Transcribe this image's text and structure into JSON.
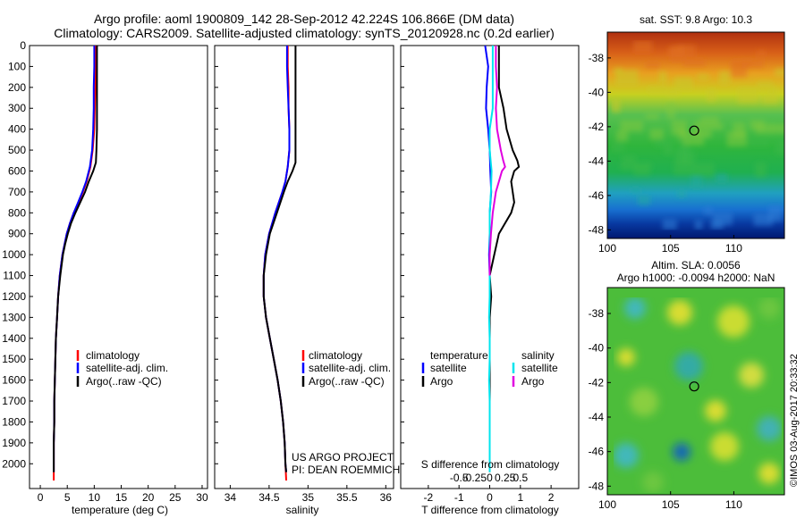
{
  "header": {
    "title_line1": "Argo profile: aoml 1900809_142 28-Sep-2012 42.224S 106.866E (DM data)",
    "title_line2": "Climatology: CARS2009. Satellite-adjusted climatology: synTS_20120928.nc (0.2d earlier)"
  },
  "footer_side": "©IMOS 03-Aug-2017 20:33:32",
  "colors": {
    "climatology": "#ff0000",
    "satellite_adj": "#0000ff",
    "argo": "#000000",
    "sat_temp_diff": "#0000ff",
    "sat_sal_diff": "#00e5ee",
    "argo_sal_diff": "#e000e0"
  },
  "chart_data": [
    {
      "type": "line",
      "xlabel": "temperature (deg C)",
      "ylabel": "",
      "xlim": [
        -2,
        31
      ],
      "ylim": [
        2080,
        0
      ],
      "x_ticks": [
        "0",
        "5",
        "10",
        "15",
        "20",
        "25",
        "30"
      ],
      "y_ticks": [
        "0",
        "100",
        "200",
        "300",
        "400",
        "500",
        "600",
        "700",
        "800",
        "900",
        "1000",
        "1100",
        "1200",
        "1300",
        "1400",
        "1500",
        "1600",
        "1700",
        "1800",
        "1900",
        "2000"
      ],
      "legend": [
        "climatology",
        "satellite-adj. clim.",
        "Argo(..raw -QC)"
      ],
      "legend_position": "lower-center",
      "series": [
        {
          "name": "climatology",
          "color": "#ff0000",
          "depth": [
            0,
            100,
            200,
            300,
            400,
            500,
            580,
            650,
            700,
            750,
            800,
            850,
            900,
            950,
            1000,
            1100,
            1200,
            1300,
            1400,
            1500,
            1600,
            1700,
            1800,
            1900,
            2000,
            2080
          ],
          "values": [
            10.2,
            10.2,
            10.2,
            10.1,
            10.0,
            9.7,
            9.3,
            8.6,
            7.9,
            7.1,
            6.2,
            5.5,
            4.9,
            4.5,
            4.1,
            3.6,
            3.3,
            3.1,
            2.9,
            2.8,
            2.7,
            2.6,
            2.6,
            2.5,
            2.5,
            2.5
          ]
        },
        {
          "name": "satellite-adj. clim.",
          "color": "#0000ff",
          "depth": [
            0,
            100,
            200,
            300,
            400,
            500,
            580,
            650,
            700,
            750,
            800,
            850,
            900,
            950,
            1000,
            1100,
            1200,
            1300,
            1400,
            1500,
            1600,
            1700,
            1800,
            1900,
            2000,
            2040
          ],
          "values": [
            10.0,
            10.0,
            9.9,
            9.9,
            9.8,
            9.6,
            9.2,
            8.5,
            7.8,
            7.0,
            6.2,
            5.5,
            4.9,
            4.5,
            4.1,
            3.6,
            3.3,
            3.1,
            2.9,
            2.8,
            2.7,
            2.6,
            2.6,
            2.5,
            2.5,
            2.5
          ]
        },
        {
          "name": "Argo(..raw -QC)",
          "color": "#000000",
          "depth": [
            0,
            100,
            200,
            300,
            400,
            500,
            560,
            600,
            650,
            700,
            750,
            800,
            850,
            900,
            950,
            1000,
            1100,
            1200,
            1300,
            1400,
            1500,
            1600,
            1700,
            1800,
            1900,
            2000,
            2040
          ],
          "values": [
            10.5,
            10.5,
            10.5,
            10.5,
            10.5,
            10.4,
            10.3,
            9.8,
            9.0,
            8.3,
            7.4,
            6.5,
            5.7,
            5.1,
            4.6,
            4.2,
            3.7,
            3.3,
            3.1,
            2.9,
            2.8,
            2.7,
            2.6,
            2.6,
            2.5,
            2.5,
            2.5
          ]
        }
      ]
    },
    {
      "type": "line",
      "xlabel": "salinity",
      "ylabel": "",
      "xlim": [
        33.8,
        36.1
      ],
      "ylim": [
        2080,
        0
      ],
      "x_ticks": [
        "34",
        "34.5",
        "35",
        "35.5",
        "36"
      ],
      "legend": [
        "climatology",
        "satellite-adj. clim.",
        "Argo(..raw -QC)"
      ],
      "legend_position": "lower-center",
      "annotations": [
        "US ARGO PROJECT",
        "PI: DEAN ROEMMICH"
      ],
      "series": [
        {
          "name": "climatology",
          "color": "#ff0000",
          "depth": [
            0,
            100,
            200,
            300,
            400,
            500,
            580,
            650,
            700,
            800,
            900,
            1000,
            1100,
            1200,
            1300,
            1400,
            1500,
            1600,
            1700,
            1800,
            1900,
            2000,
            2080
          ],
          "values": [
            34.74,
            34.74,
            34.75,
            34.75,
            34.76,
            34.76,
            34.74,
            34.71,
            34.67,
            34.58,
            34.5,
            34.45,
            34.43,
            34.43,
            34.46,
            34.51,
            34.56,
            34.61,
            34.65,
            34.68,
            34.7,
            34.71,
            34.72
          ]
        },
        {
          "name": "satellite-adj. clim.",
          "color": "#0000ff",
          "depth": [
            0,
            100,
            200,
            300,
            400,
            500,
            580,
            650,
            700,
            800,
            900,
            1000,
            1100,
            1200,
            1300,
            1400,
            1500,
            1600,
            1700,
            1800,
            1900,
            2000,
            2040
          ],
          "values": [
            34.73,
            34.73,
            34.74,
            34.75,
            34.76,
            34.76,
            34.74,
            34.71,
            34.67,
            34.58,
            34.5,
            34.45,
            34.43,
            34.43,
            34.46,
            34.51,
            34.56,
            34.61,
            34.65,
            34.68,
            34.7,
            34.71,
            34.72
          ]
        },
        {
          "name": "Argo(..raw -QC)",
          "color": "#000000",
          "depth": [
            0,
            100,
            200,
            300,
            400,
            500,
            560,
            600,
            650,
            700,
            800,
            900,
            1000,
            1100,
            1200,
            1300,
            1400,
            1500,
            1600,
            1700,
            1800,
            1900,
            2000,
            2040
          ],
          "values": [
            34.84,
            34.84,
            34.84,
            34.84,
            34.84,
            34.84,
            34.84,
            34.8,
            34.74,
            34.69,
            34.6,
            34.51,
            34.46,
            34.43,
            34.43,
            34.46,
            34.51,
            34.56,
            34.61,
            34.65,
            34.68,
            34.7,
            34.71,
            34.72
          ]
        }
      ]
    },
    {
      "type": "line",
      "xlabel": "T difference from climatology",
      "xlabel_secondary": "S difference from climatology",
      "xlim": [
        -2.9,
        2.9
      ],
      "ylim": [
        2080,
        0
      ],
      "x_ticks_T": [
        "-2",
        "-1",
        "0",
        "1",
        "2"
      ],
      "x_ticks_S": [
        "-0.5",
        "-0.25",
        "0",
        "0.25",
        "0.5"
      ],
      "legend_temperature_title": "temperature",
      "legend_salinity_title": "salinity",
      "legend_temperature": [
        "satellite",
        "Argo"
      ],
      "legend_salinity": [
        "satellite",
        "Argo"
      ],
      "legend_position": "lower-center",
      "series": [
        {
          "name": "temperature satellite",
          "color": "#0000ff",
          "depth": [
            0,
            50,
            100,
            200,
            300,
            400,
            500,
            600,
            700,
            800,
            900,
            1000,
            1100,
            1200
          ],
          "values": [
            -0.15,
            -0.1,
            -0.05,
            -0.1,
            -0.12,
            -0.05,
            0.0,
            0.02,
            0.05,
            0.0,
            0.0,
            -0.02,
            0.0,
            0.0
          ]
        },
        {
          "name": "temperature Argo",
          "color": "#000000",
          "depth": [
            0,
            100,
            200,
            300,
            400,
            500,
            550,
            580,
            600,
            650,
            700,
            750,
            800,
            900,
            1000,
            1100,
            1200,
            1300,
            1400,
            1500,
            1600,
            1700,
            1800,
            1900,
            2000,
            2040
          ],
          "values": [
            0.3,
            0.3,
            0.3,
            0.45,
            0.55,
            0.75,
            0.9,
            0.95,
            0.8,
            0.7,
            0.75,
            0.8,
            0.7,
            0.3,
            0.15,
            0.0,
            0.05,
            0.0,
            0.0,
            0.0,
            0.0,
            0.0,
            0.0,
            0.0,
            0.0,
            0.0
          ]
        },
        {
          "name": "salinity satellite",
          "color": "#00e5ee",
          "depth": [
            0,
            100,
            200,
            300,
            400,
            500,
            600,
            700,
            800,
            900,
            1000,
            1100,
            1200,
            1300,
            1400,
            1500,
            1600,
            1700,
            1800,
            1900,
            2000,
            2040
          ],
          "values": [
            0.05,
            0.05,
            0.05,
            0.05,
            0.0,
            0.0,
            0.03,
            0.02,
            0.0,
            0.0,
            0.0,
            0.0,
            0.0,
            -0.01,
            0.0,
            0.0,
            -0.01,
            0.0,
            0.0,
            0.0,
            0.0,
            0.0
          ]
        },
        {
          "name": "salinity Argo",
          "color": "#e000e0",
          "depth": [
            0,
            100,
            200,
            300,
            400,
            500,
            550,
            580,
            600,
            650,
            700,
            800,
            900,
            1000,
            1100
          ],
          "values": [
            0.1,
            0.1,
            0.12,
            0.1,
            0.12,
            0.18,
            0.22,
            0.25,
            0.2,
            0.15,
            0.1,
            0.05,
            0.02,
            0.0,
            0.0
          ]
        }
      ]
    },
    {
      "type": "heatmap",
      "title": "sat. SST: 9.8 Argo: 10.3",
      "x_ticks": [
        "100",
        "105",
        "110"
      ],
      "y_ticks": [
        "-38",
        "-40",
        "-42",
        "-44",
        "-46",
        "-48"
      ],
      "xlim": [
        100,
        114
      ],
      "ylim": [
        -48.5,
        -36.5
      ],
      "marker": {
        "lon": 106.866,
        "lat": -42.224
      }
    },
    {
      "type": "heatmap",
      "title_line1": "Altim. SLA: 0.0056",
      "title_line2": "Argo h1000: -0.0094 h2000: NaN",
      "x_ticks": [
        "100",
        "105",
        "110"
      ],
      "y_ticks": [
        "-38",
        "-40",
        "-42",
        "-44",
        "-46",
        "-48"
      ],
      "xlim": [
        100,
        114
      ],
      "ylim": [
        -48.5,
        -36.5
      ],
      "marker": {
        "lon": 106.866,
        "lat": -42.224
      }
    }
  ]
}
